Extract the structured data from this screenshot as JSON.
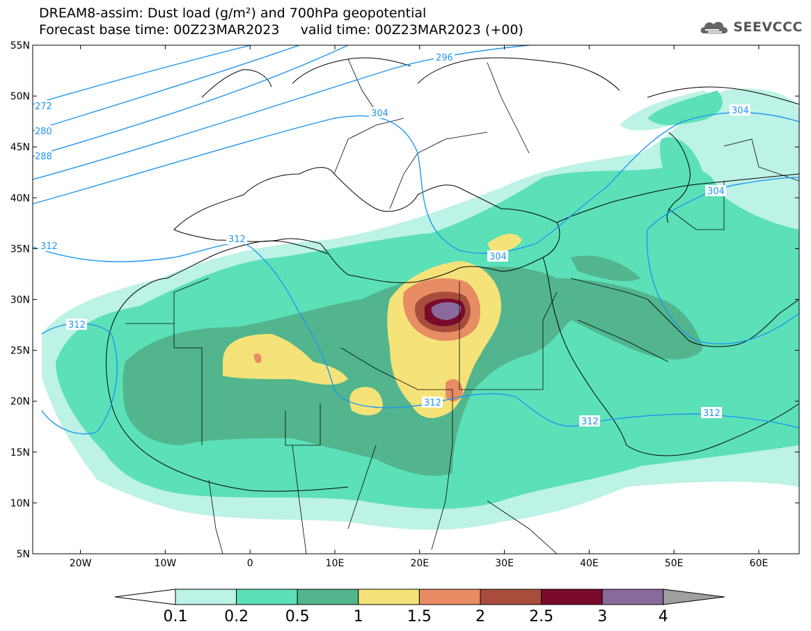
{
  "title": {
    "line1": "DREAM8-assim: Dust load (g/m²) and 700hPa geopotential",
    "line2": "Forecast base time: 00Z23MAR2023     valid time: 00Z23MAR2023 (+00)"
  },
  "logo": {
    "text": "SEEVCCC",
    "icon": "cloud-logo-icon"
  },
  "axes": {
    "lat_labels": [
      "55N",
      "50N",
      "45N",
      "40N",
      "35N",
      "30N",
      "25N",
      "20N",
      "15N",
      "10N",
      "5N"
    ],
    "lon_labels": [
      "20W",
      "10W",
      "0",
      "10E",
      "20E",
      "30E",
      "40E",
      "50E",
      "60E"
    ]
  },
  "colorbar": {
    "labels": [
      "0.1",
      "0.2",
      "0.5",
      "1",
      "1.5",
      "2",
      "2.5",
      "3",
      "4"
    ],
    "colors": [
      "#bdf2e6",
      "#5ce0b8",
      "#52b58e",
      "#f5e379",
      "#e88c64",
      "#a84c3c",
      "#7a0a2c",
      "#8a6a9c",
      "#a0a0a0"
    ]
  },
  "contour_labels": [
    "296",
    "304",
    "304",
    "304",
    "304",
    "312",
    "312",
    "312",
    "312",
    "312",
    "312",
    "272",
    "280",
    "288"
  ],
  "colors": {
    "contour": "#1e96f0",
    "border": "#000000"
  }
}
